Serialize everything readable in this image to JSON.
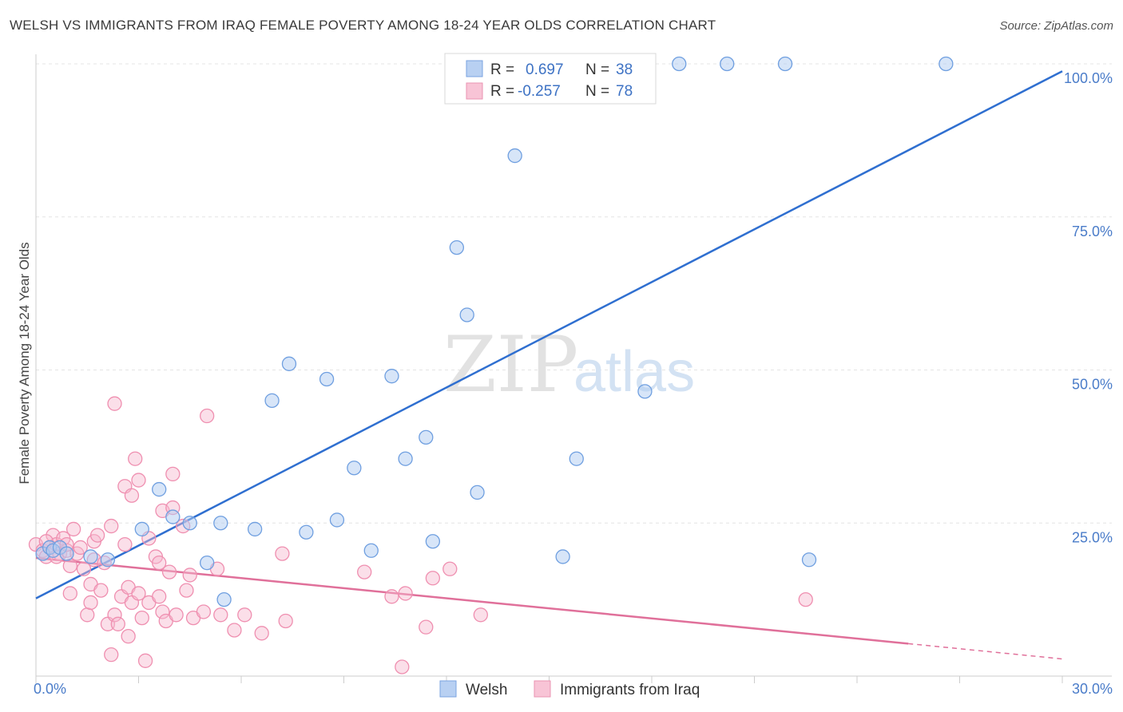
{
  "title": "WELSH VS IMMIGRANTS FROM IRAQ FEMALE POVERTY AMONG 18-24 YEAR OLDS CORRELATION CHART",
  "source": "Source: ZipAtlas.com",
  "watermark": {
    "zip": "ZIP",
    "atlas": "atlas"
  },
  "colors": {
    "welsh": "#6f9fe0",
    "welsh_line": "#2f6fd0",
    "iraq": "#ef8fb0",
    "iraq_line": "#e0709a",
    "axis_text": "#4a7cc9"
  },
  "legend": {
    "rows": [
      {
        "r_label": "R =",
        "r_value": "0.697",
        "n_label": "N =",
        "n_value": "38"
      },
      {
        "r_label": "R =",
        "r_value": "-0.257",
        "n_label": "N =",
        "n_value": "78"
      }
    ]
  },
  "bottom_legend": [
    "Welsh",
    "Immigrants from Iraq"
  ],
  "chart_data": {
    "type": "scatter",
    "title": "WELSH VS IMMIGRANTS FROM IRAQ FEMALE POVERTY AMONG 18-24 YEAR OLDS CORRELATION CHART",
    "xlabel": "",
    "ylabel": "Female Poverty Among 18-24 Year Olds",
    "xlim": [
      0,
      30
    ],
    "ylim": [
      0,
      100
    ],
    "x_ticks": [
      "0.0%",
      "30.0%"
    ],
    "y_ticks": [
      {
        "value": 25,
        "label": "25.0%"
      },
      {
        "value": 50,
        "label": "50.0%"
      },
      {
        "value": 75,
        "label": "75.0%"
      },
      {
        "value": 100,
        "label": "100.0%"
      }
    ],
    "grid": true,
    "legend_position": "top-center",
    "series": [
      {
        "name": "Welsh",
        "r": 0.697,
        "n": 38,
        "trend": {
          "x": [
            0,
            30
          ],
          "y": [
            12.7,
            98.8
          ]
        },
        "points": [
          [
            0.2,
            20.0
          ],
          [
            0.4,
            21.0
          ],
          [
            0.5,
            20.5
          ],
          [
            0.7,
            21.0
          ],
          [
            0.9,
            20.0
          ],
          [
            1.6,
            19.5
          ],
          [
            2.1,
            19.0
          ],
          [
            3.1,
            24.0
          ],
          [
            3.6,
            30.5
          ],
          [
            4.0,
            26.0
          ],
          [
            4.5,
            25.0
          ],
          [
            5.0,
            18.5
          ],
          [
            5.5,
            12.5
          ],
          [
            5.4,
            25.0
          ],
          [
            6.4,
            24.0
          ],
          [
            6.9,
            45.0
          ],
          [
            7.4,
            51.0
          ],
          [
            7.9,
            23.5
          ],
          [
            8.5,
            48.5
          ],
          [
            8.8,
            25.5
          ],
          [
            9.3,
            34.0
          ],
          [
            9.8,
            20.5
          ],
          [
            10.4,
            49.0
          ],
          [
            10.8,
            35.5
          ],
          [
            11.4,
            39.0
          ],
          [
            11.6,
            22.0
          ],
          [
            12.3,
            70.0
          ],
          [
            12.6,
            59.0
          ],
          [
            12.9,
            30.0
          ],
          [
            14.0,
            85.0
          ],
          [
            15.4,
            19.5
          ],
          [
            15.8,
            35.5
          ],
          [
            17.8,
            46.5
          ],
          [
            18.8,
            100.0
          ],
          [
            20.2,
            100.0
          ],
          [
            21.9,
            100.0
          ],
          [
            22.6,
            19.0
          ],
          [
            26.6,
            100.0
          ]
        ]
      },
      {
        "name": "Immigrants from Iraq",
        "r": -0.257,
        "n": 78,
        "trend": {
          "x": [
            0,
            25.5
          ],
          "y": [
            19.3,
            5.3
          ]
        },
        "trend_dashed": {
          "x": [
            25.5,
            30
          ],
          "y": [
            5.3,
            2.8
          ]
        },
        "points": [
          [
            0.0,
            21.5
          ],
          [
            0.2,
            20.5
          ],
          [
            0.3,
            19.5
          ],
          [
            0.4,
            21.0
          ],
          [
            0.5,
            23.0
          ],
          [
            0.6,
            21.5
          ],
          [
            0.7,
            20.0
          ],
          [
            0.8,
            22.5
          ],
          [
            0.9,
            20.5
          ],
          [
            1.0,
            18.0
          ],
          [
            1.0,
            13.5
          ],
          [
            1.1,
            24.0
          ],
          [
            1.2,
            20.0
          ],
          [
            1.3,
            21.0
          ],
          [
            1.4,
            17.5
          ],
          [
            1.5,
            10.0
          ],
          [
            1.6,
            15.0
          ],
          [
            1.6,
            12.0
          ],
          [
            1.7,
            19.0
          ],
          [
            1.7,
            22.0
          ],
          [
            1.8,
            23.0
          ],
          [
            1.9,
            14.0
          ],
          [
            2.0,
            18.5
          ],
          [
            2.1,
            8.5
          ],
          [
            2.2,
            3.5
          ],
          [
            2.2,
            24.5
          ],
          [
            2.3,
            44.5
          ],
          [
            2.3,
            10.0
          ],
          [
            2.4,
            8.5
          ],
          [
            2.5,
            13.0
          ],
          [
            2.6,
            21.5
          ],
          [
            2.6,
            31.0
          ],
          [
            2.7,
            6.5
          ],
          [
            2.7,
            14.5
          ],
          [
            2.8,
            12.0
          ],
          [
            2.8,
            29.5
          ],
          [
            2.9,
            35.5
          ],
          [
            3.0,
            32.0
          ],
          [
            3.0,
            13.5
          ],
          [
            3.1,
            9.5
          ],
          [
            3.2,
            2.5
          ],
          [
            3.3,
            22.5
          ],
          [
            3.3,
            12.0
          ],
          [
            3.5,
            19.5
          ],
          [
            3.6,
            18.5
          ],
          [
            3.6,
            13.0
          ],
          [
            3.7,
            27.0
          ],
          [
            3.7,
            10.5
          ],
          [
            3.8,
            9.0
          ],
          [
            3.9,
            17.0
          ],
          [
            4.0,
            33.0
          ],
          [
            4.0,
            27.5
          ],
          [
            4.1,
            10.0
          ],
          [
            4.3,
            24.5
          ],
          [
            4.4,
            14.0
          ],
          [
            4.5,
            16.5
          ],
          [
            4.6,
            9.5
          ],
          [
            4.9,
            10.5
          ],
          [
            5.0,
            42.5
          ],
          [
            5.3,
            17.5
          ],
          [
            5.4,
            10.0
          ],
          [
            5.8,
            7.5
          ],
          [
            6.1,
            10.0
          ],
          [
            6.6,
            7.0
          ],
          [
            7.2,
            20.0
          ],
          [
            7.3,
            9.0
          ],
          [
            9.6,
            17.0
          ],
          [
            10.4,
            13.0
          ],
          [
            10.7,
            1.5
          ],
          [
            10.8,
            13.5
          ],
          [
            11.4,
            8.0
          ],
          [
            11.6,
            16.0
          ],
          [
            12.1,
            17.5
          ],
          [
            13.0,
            10.0
          ],
          [
            22.5,
            12.5
          ],
          [
            0.3,
            22.0
          ],
          [
            0.9,
            21.5
          ],
          [
            0.6,
            19.5
          ]
        ]
      }
    ]
  }
}
